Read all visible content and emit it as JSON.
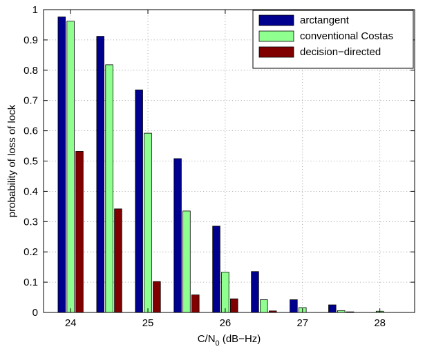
{
  "chart_data": {
    "type": "bar",
    "xlabel": "C/N0 (dB−Hz)",
    "xlabel_main": "C/N",
    "xlabel_sub": "0",
    "xlabel_rest": " (dB−Hz)",
    "ylabel": "probability of loss of lock",
    "xlim": [
      23.65,
      28.45
    ],
    "ylim": [
      0,
      1
    ],
    "xticks": [
      24,
      25,
      26,
      27,
      28
    ],
    "xtick_labels": [
      "24",
      "25",
      "26",
      "27",
      "28"
    ],
    "yticks": [
      0,
      0.1,
      0.2,
      0.3,
      0.4,
      0.5,
      0.6,
      0.7,
      0.8,
      0.9,
      1
    ],
    "ytick_labels": [
      "0",
      "0.1",
      "0.2",
      "0.3",
      "0.4",
      "0.5",
      "0.6",
      "0.7",
      "0.8",
      "0.9",
      "1"
    ],
    "grid": true,
    "legend_position": "top-right",
    "x": [
      24,
      24.5,
      25,
      25.5,
      26,
      26.5,
      27,
      27.5,
      28
    ],
    "series": [
      {
        "name": "arctangent",
        "color": "#00008f",
        "values": [
          0.976,
          0.912,
          0.735,
          0.508,
          0.285,
          0.135,
          0.042,
          0.025,
          0.0
        ]
      },
      {
        "name": "conventional Costas",
        "color": "#8fff8f",
        "values": [
          0.962,
          0.818,
          0.592,
          0.335,
          0.133,
          0.042,
          0.016,
          0.006,
          0.004
        ]
      },
      {
        "name": "decision−directed",
        "color": "#800000",
        "values": [
          0.532,
          0.342,
          0.102,
          0.058,
          0.045,
          0.005,
          0.0,
          0.002,
          0.0
        ]
      }
    ]
  }
}
